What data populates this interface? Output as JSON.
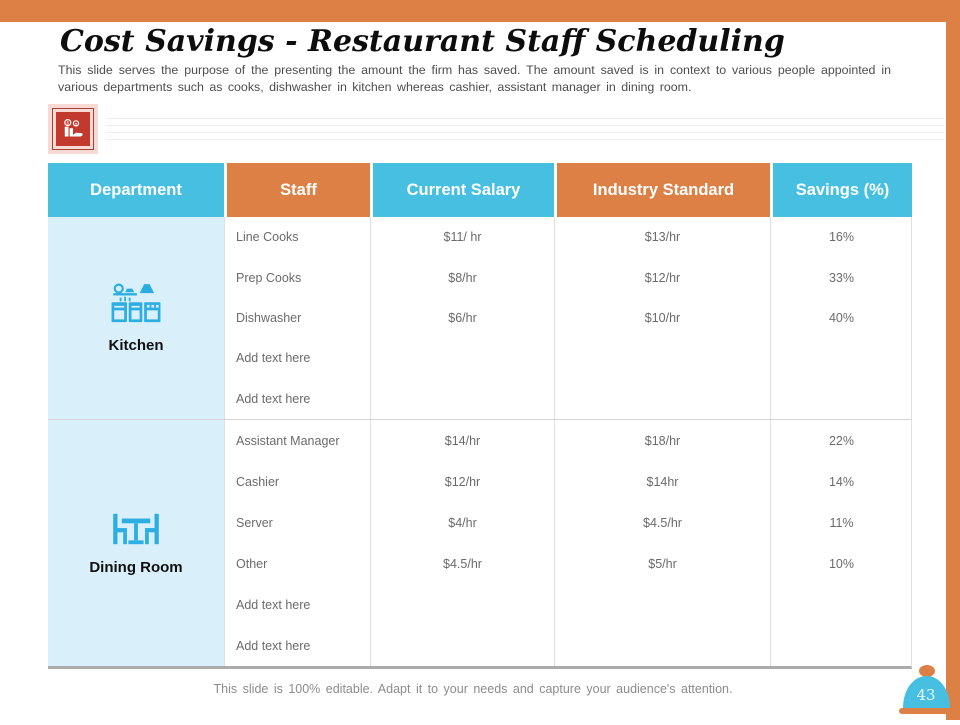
{
  "slide": {
    "title": "Cost Savings - Restaurant Staff Scheduling",
    "description": "This slide serves the purpose of the presenting the amount the firm has saved. The amount saved is in context to various people appointed in various departments such as cooks, dishwasher in kitchen whereas cashier, assistant manager in dining room.",
    "footer": "This slide is 100% editable. Adapt it to your needs and capture your audience's attention.",
    "page_number": "43"
  },
  "colors": {
    "accent_orange": "#DD8045",
    "accent_blue": "#47BFE1",
    "department_bg": "#D9EFFA",
    "icon_blue": "#2CAEE3",
    "deco_icon_red": "#C23A2E",
    "deco_icon_pink": "#F6DAD3"
  },
  "icons": {
    "deco": "money-hand-icon",
    "kitchen": "kitchen-icon",
    "dining": "dining-table-icon",
    "badge": "cloche-icon"
  },
  "table": {
    "headers": [
      "Department",
      "Staff",
      "Current Salary",
      "Industry Standard",
      "Savings (%)"
    ],
    "sections": [
      {
        "department": "Kitchen",
        "rows": [
          {
            "staff": "Line Cooks",
            "current": "$11/ hr",
            "industry": "$13/hr",
            "savings": "16%"
          },
          {
            "staff": "Prep Cooks",
            "current": "$8/hr",
            "industry": "$12/hr",
            "savings": "33%"
          },
          {
            "staff": "Dishwasher",
            "current": "$6/hr",
            "industry": "$10/hr",
            "savings": "40%"
          },
          {
            "staff": "Add text here",
            "current": "",
            "industry": "",
            "savings": ""
          },
          {
            "staff": "Add text here",
            "current": "",
            "industry": "",
            "savings": ""
          }
        ]
      },
      {
        "department": "Dining Room",
        "rows": [
          {
            "staff": "Assistant Manager",
            "current": "$14/hr",
            "industry": "$18/hr",
            "savings": "22%"
          },
          {
            "staff": "Cashier",
            "current": "$12/hr",
            "industry": "$14hr",
            "savings": "14%"
          },
          {
            "staff": "Server",
            "current": "$4/hr",
            "industry": "$4.5/hr",
            "savings": "11%"
          },
          {
            "staff": "Other",
            "current": "$4.5/hr",
            "industry": "$5/hr",
            "savings": "10%"
          },
          {
            "staff": "Add text here",
            "current": "",
            "industry": "",
            "savings": ""
          },
          {
            "staff": "Add text here",
            "current": "",
            "industry": "",
            "savings": ""
          }
        ]
      }
    ]
  }
}
